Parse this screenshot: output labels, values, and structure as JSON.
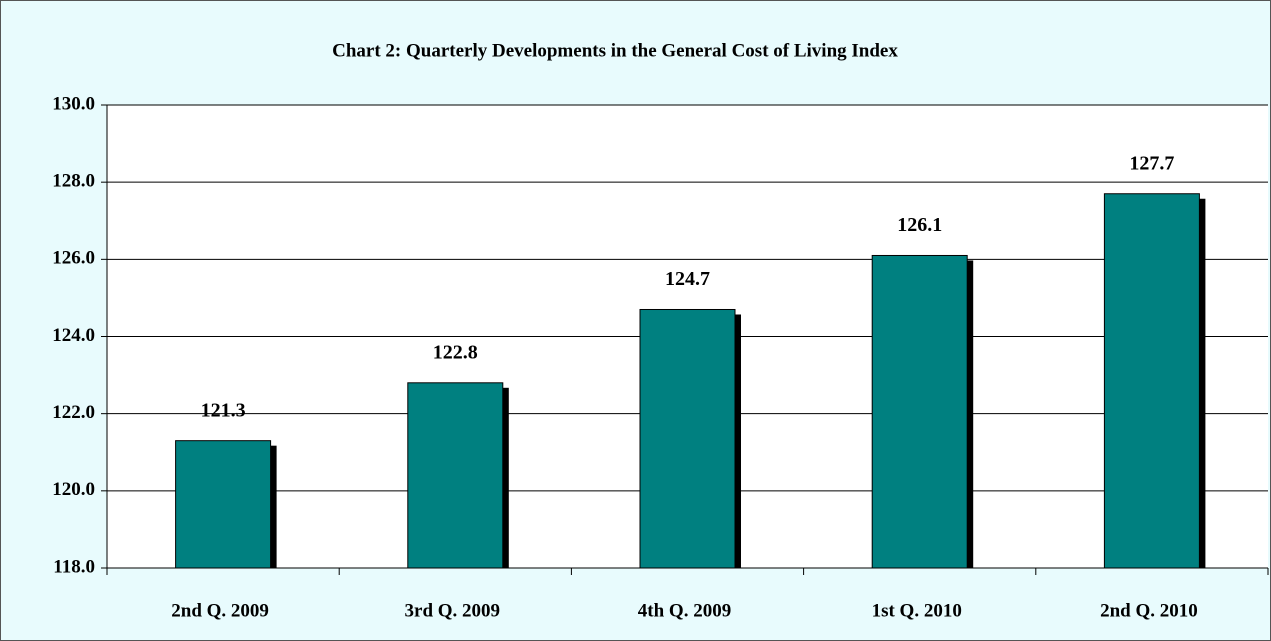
{
  "chart_data": {
    "type": "bar",
    "title": "Chart 2: Quarterly Developments in the General Cost of Living Index",
    "categories": [
      "2nd Q. 2009",
      "3rd Q. 2009",
      "4th Q. 2009",
      "1st Q. 2010",
      "2nd Q. 2010"
    ],
    "values": [
      121.3,
      122.8,
      124.7,
      126.1,
      127.7
    ],
    "color": "#008080",
    "ylim": [
      118,
      130
    ],
    "yticks": [
      {
        "value": 118,
        "label": "118.0"
      },
      {
        "value": 120,
        "label": "120.0"
      },
      {
        "value": 122,
        "label": "122.0"
      },
      {
        "value": 124,
        "label": "124.0"
      },
      {
        "value": 126,
        "label": "126.0"
      },
      {
        "value": 128,
        "label": "128.0"
      },
      {
        "value": 130,
        "label": "130.0"
      }
    ],
    "grid": true
  }
}
